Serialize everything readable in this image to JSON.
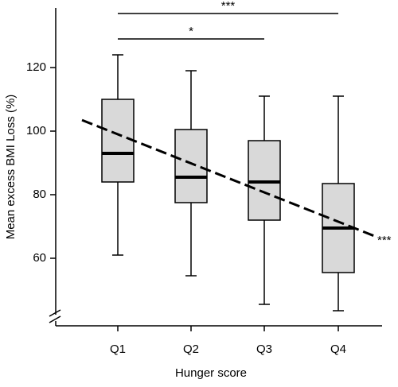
{
  "chart_data": {
    "type": "box",
    "x_label": "Hunger score",
    "y_label": "Mean excess BMI Loss (%)",
    "categories": [
      "Q1",
      "Q2",
      "Q3",
      "Q4"
    ],
    "color": "#d9d9d9",
    "boxes": [
      {
        "min": 61,
        "q1": 84,
        "median": 93,
        "q3": 110,
        "max": 124
      },
      {
        "min": 54.5,
        "q1": 77.5,
        "median": 85.5,
        "q3": 100.5,
        "max": 119
      },
      {
        "min": 45.5,
        "q1": 72,
        "median": 84,
        "q3": 97,
        "max": 111
      },
      {
        "min": 43.5,
        "q1": 55.5,
        "median": 69.5,
        "q3": 83.5,
        "max": 111
      }
    ],
    "trend": {
      "values": [
        99,
        71.5
      ],
      "label": "***"
    },
    "comparisons": [
      {
        "from": "Q1",
        "to": "Q4",
        "label": "***"
      },
      {
        "from": "Q1",
        "to": "Q3",
        "label": "*"
      }
    ],
    "ylim": [
      38.75,
      138.75
    ],
    "yticks": [
      60,
      80,
      100,
      120
    ]
  }
}
